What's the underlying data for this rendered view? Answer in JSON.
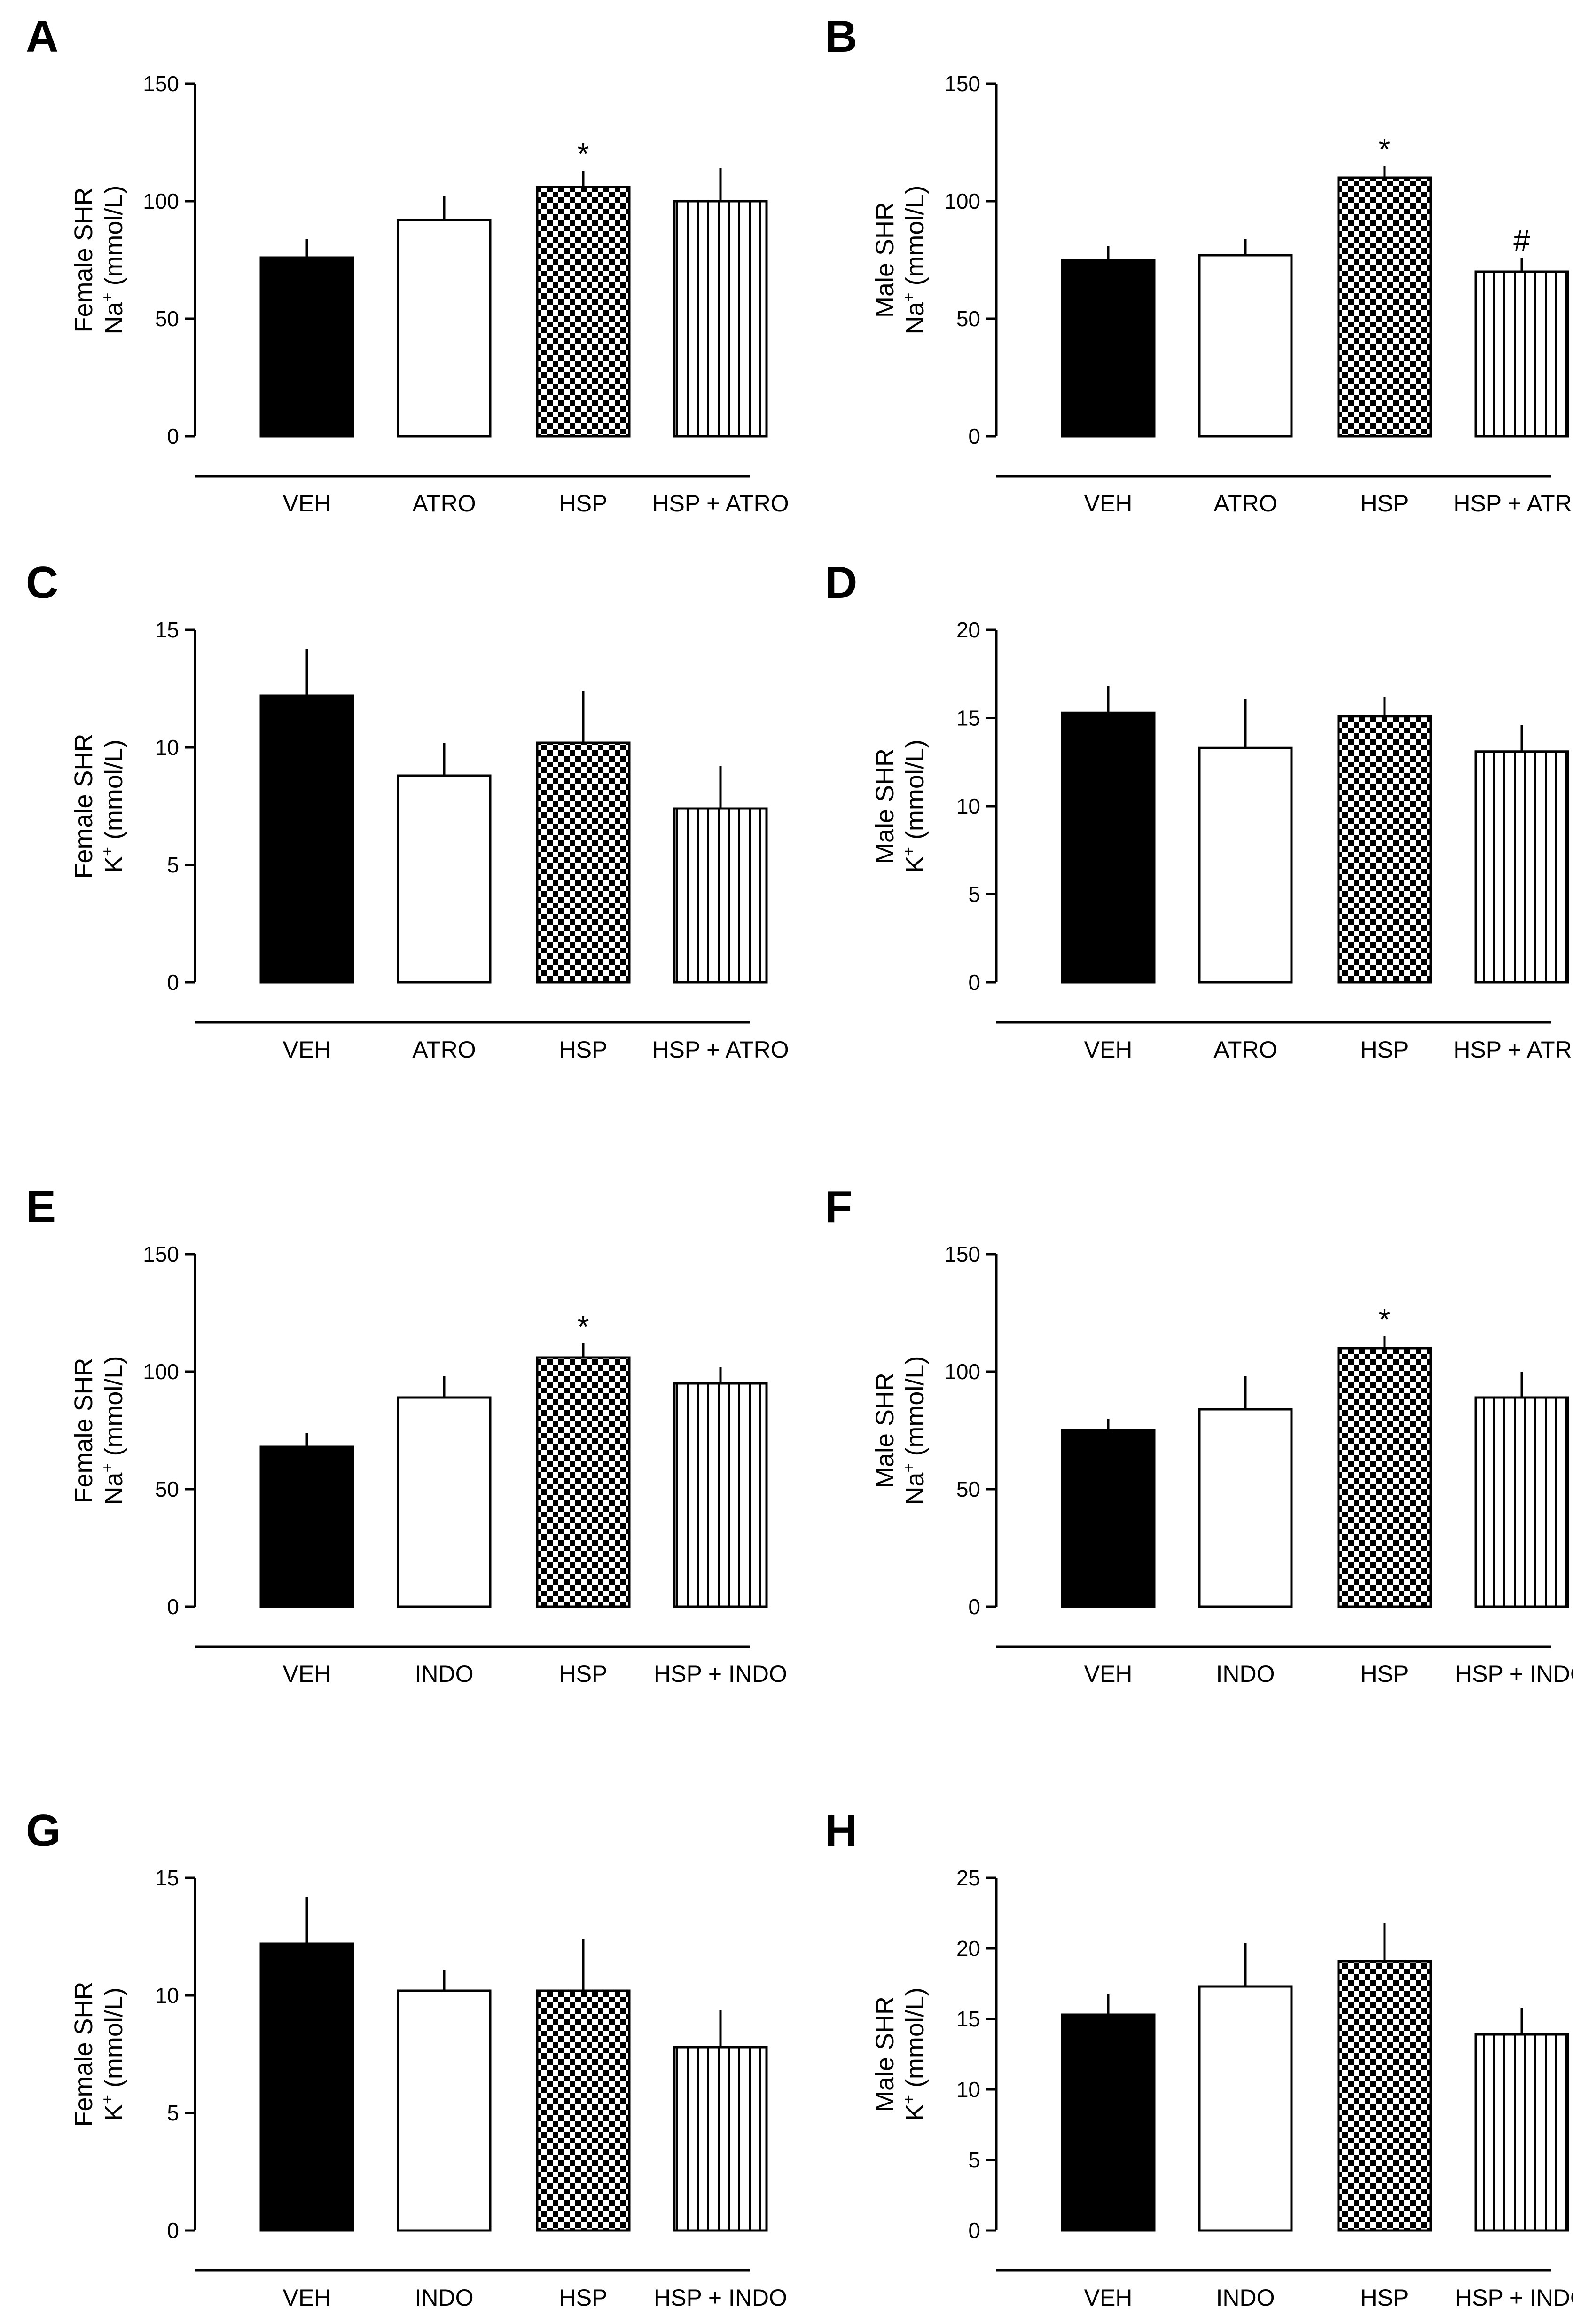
{
  "chart_data": [
    {
      "panel": "A",
      "type": "bar",
      "ylabel_line1": "Female SHR",
      "ylabel_ion": "Na",
      "ylabel_sup": "+",
      "ylabel_unit": " (mmol/L)",
      "ylim": [
        0,
        150
      ],
      "yticks": [
        "0",
        "50",
        "100",
        "150"
      ],
      "categories": [
        "VEH",
        "ATRO",
        "HSP",
        "HSP + ATRO"
      ],
      "values": [
        76,
        92,
        106,
        100
      ],
      "errors": [
        8,
        10,
        7,
        14
      ],
      "annotations": [
        "",
        "",
        "*",
        ""
      ]
    },
    {
      "panel": "B",
      "type": "bar",
      "ylabel_line1": "Male SHR",
      "ylabel_ion": "Na",
      "ylabel_sup": "+",
      "ylabel_unit": " (mmol/L)",
      "ylim": [
        0,
        150
      ],
      "yticks": [
        "0",
        "50",
        "100",
        "150"
      ],
      "categories": [
        "VEH",
        "ATRO",
        "HSP",
        "HSP + ATRO"
      ],
      "values": [
        75,
        77,
        110,
        70
      ],
      "errors": [
        6,
        7,
        5,
        6
      ],
      "annotations": [
        "",
        "",
        "*",
        "#"
      ]
    },
    {
      "panel": "C",
      "type": "bar",
      "ylabel_line1": "Female SHR",
      "ylabel_ion": "K",
      "ylabel_sup": "+",
      "ylabel_unit": " (mmol/L)",
      "ylim": [
        0,
        15
      ],
      "yticks": [
        "0",
        "5",
        "10",
        "15"
      ],
      "categories": [
        "VEH",
        "ATRO",
        "HSP",
        "HSP + ATRO"
      ],
      "values": [
        12.2,
        8.8,
        10.2,
        7.4
      ],
      "errors": [
        2.0,
        1.4,
        2.2,
        1.8
      ],
      "annotations": [
        "",
        "",
        "",
        ""
      ]
    },
    {
      "panel": "D",
      "type": "bar",
      "ylabel_line1": "Male SHR",
      "ylabel_ion": "K",
      "ylabel_sup": "+",
      "ylabel_unit": " (mmol/L)",
      "ylim": [
        0,
        20
      ],
      "yticks": [
        "0",
        "5",
        "10",
        "15",
        "20"
      ],
      "categories": [
        "VEH",
        "ATRO",
        "HSP",
        "HSP + ATRO"
      ],
      "values": [
        15.3,
        13.3,
        15.1,
        13.1
      ],
      "errors": [
        1.5,
        2.8,
        1.1,
        1.5
      ],
      "annotations": [
        "",
        "",
        "",
        ""
      ]
    },
    {
      "panel": "E",
      "type": "bar",
      "ylabel_line1": "Female SHR",
      "ylabel_ion": "Na",
      "ylabel_sup": "+",
      "ylabel_unit": " (mmol/L)",
      "ylim": [
        0,
        150
      ],
      "yticks": [
        "0",
        "50",
        "100",
        "150"
      ],
      "categories": [
        "VEH",
        "INDO",
        "HSP",
        "HSP + INDO"
      ],
      "values": [
        68,
        89,
        106,
        95
      ],
      "errors": [
        6,
        9,
        6,
        7
      ],
      "annotations": [
        "",
        "",
        "*",
        ""
      ]
    },
    {
      "panel": "F",
      "type": "bar",
      "ylabel_line1": "Male SHR",
      "ylabel_ion": "Na",
      "ylabel_sup": "+",
      "ylabel_unit": " (mmol/L)",
      "ylim": [
        0,
        150
      ],
      "yticks": [
        "0",
        "50",
        "100",
        "150"
      ],
      "categories": [
        "VEH",
        "INDO",
        "HSP",
        "HSP + INDO"
      ],
      "values": [
        75,
        84,
        110,
        89
      ],
      "errors": [
        5,
        14,
        5,
        11
      ],
      "annotations": [
        "",
        "",
        "*",
        ""
      ]
    },
    {
      "panel": "G",
      "type": "bar",
      "ylabel_line1": "Female SHR",
      "ylabel_ion": "K",
      "ylabel_sup": "+",
      "ylabel_unit": " (mmol/L)",
      "ylim": [
        0,
        15
      ],
      "yticks": [
        "0",
        "5",
        "10",
        "15"
      ],
      "categories": [
        "VEH",
        "INDO",
        "HSP",
        "HSP + INDO"
      ],
      "values": [
        12.2,
        10.2,
        10.2,
        7.8
      ],
      "errors": [
        2.0,
        0.9,
        2.2,
        1.6
      ],
      "annotations": [
        "",
        "",
        "",
        ""
      ]
    },
    {
      "panel": "H",
      "type": "bar",
      "ylabel_line1": "Male SHR",
      "ylabel_ion": "K",
      "ylabel_sup": "+",
      "ylabel_unit": " (mmol/L)",
      "ylim": [
        0,
        25
      ],
      "yticks": [
        "0",
        "5",
        "10",
        "15",
        "20",
        "25"
      ],
      "categories": [
        "VEH",
        "INDO",
        "HSP",
        "HSP + INDO"
      ],
      "values": [
        15.3,
        17.3,
        19.1,
        13.9
      ],
      "errors": [
        1.5,
        3.1,
        2.7,
        1.9
      ],
      "annotations": [
        "",
        "",
        "",
        ""
      ]
    }
  ],
  "bar_styles": [
    "solid-black",
    "white",
    "checker",
    "vertical-lines"
  ]
}
